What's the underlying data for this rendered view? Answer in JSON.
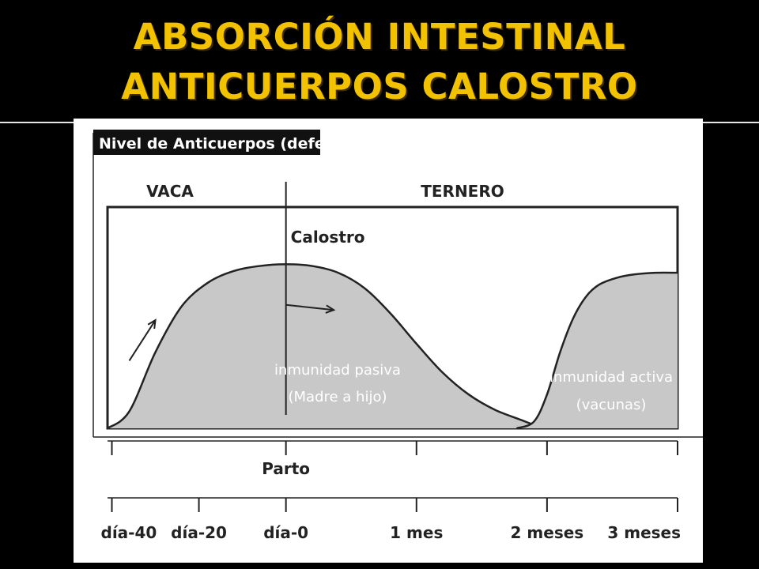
{
  "slide": {
    "title_line1": "ABSORCIÓN INTESTINAL",
    "title_line2": "ANTICUERPOS CALOSTRO"
  },
  "colors": {
    "background": "#000000",
    "title": "#f2c200",
    "curve_fill": "#c8c8c8",
    "line": "#222222",
    "figure_background": "#ffffff"
  },
  "chart_data": {
    "type": "area",
    "ylabel": "Nivel de Anticuerpos (defensas)",
    "xlabel": "",
    "grid": false,
    "regions": [
      {
        "label": "VACA",
        "x_start": -40,
        "x_end": 0
      },
      {
        "label": "TERNERO",
        "x_start": 0,
        "x_end": 90
      }
    ],
    "event": {
      "label": "Parto",
      "x": 0
    },
    "x_unit": "días",
    "x_ticks": [
      {
        "x": -40,
        "label": "día-40"
      },
      {
        "x": -20,
        "label": "día-20"
      },
      {
        "x": 0,
        "label": "día-0"
      },
      {
        "x": 30,
        "label": "1 mes"
      },
      {
        "x": 60,
        "label": "2 meses"
      },
      {
        "x": 90,
        "label": "3 meses"
      }
    ],
    "upper_axis_ticks": [
      -40,
      0,
      30,
      60,
      90
    ],
    "xlim": [
      -41,
      90
    ],
    "ylim": [
      0,
      100
    ],
    "series": [
      {
        "name": "inmunidad pasiva",
        "sublabel": "(Madre a hijo)",
        "points": [
          [
            -41,
            0
          ],
          [
            -36,
            10
          ],
          [
            -30,
            45
          ],
          [
            -24,
            72
          ],
          [
            -18,
            86
          ],
          [
            -12,
            93
          ],
          [
            -6,
            96
          ],
          [
            0,
            97
          ],
          [
            6,
            96
          ],
          [
            12,
            92
          ],
          [
            18,
            83
          ],
          [
            24,
            68
          ],
          [
            30,
            50
          ],
          [
            36,
            33
          ],
          [
            42,
            20
          ],
          [
            48,
            11
          ],
          [
            54,
            5
          ],
          [
            59,
            0
          ]
        ]
      },
      {
        "name": "inmunidad activa",
        "sublabel": "(vacunas)",
        "points": [
          [
            53,
            0
          ],
          [
            57,
            4
          ],
          [
            60,
            20
          ],
          [
            63,
            45
          ],
          [
            66,
            65
          ],
          [
            69,
            78
          ],
          [
            72,
            85
          ],
          [
            76,
            89
          ],
          [
            80,
            91
          ],
          [
            85,
            92
          ],
          [
            90,
            92
          ]
        ]
      }
    ],
    "annotations": [
      {
        "text": "Calostro",
        "x": 0,
        "y": 110
      }
    ],
    "arrows": [
      {
        "from": [
          -36,
          40
        ],
        "to": [
          -30,
          64
        ]
      },
      {
        "from": [
          0,
          73
        ],
        "to": [
          11,
          70
        ]
      }
    ]
  }
}
